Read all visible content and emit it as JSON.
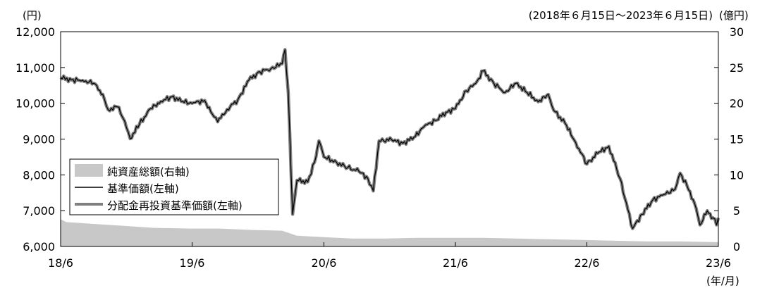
{
  "period_label": "(2018年６月15日～2023年６月15日)",
  "left_unit": "(円)",
  "right_unit": "(億円)",
  "x_unit": "(年/月)",
  "legend": [
    {
      "label": "純資産総額(右軸)",
      "kind": "area",
      "color": "#c8c8c8"
    },
    {
      "label": "基準価額(左軸)",
      "kind": "line",
      "color": "#000000"
    },
    {
      "label": "分配金再投資基準価額(左軸)",
      "kind": "thick-line",
      "color": "#808080"
    }
  ],
  "chart_data": {
    "type": "line",
    "x_axis": {
      "type": "date",
      "range": [
        "2018-06-15",
        "2023-06-15"
      ],
      "ticks": [
        {
          "date": "2018-06-15",
          "label": "18/6"
        },
        {
          "date": "2019-06-15",
          "label": "19/6"
        },
        {
          "date": "2020-06-15",
          "label": "20/6"
        },
        {
          "date": "2021-06-15",
          "label": "21/6"
        },
        {
          "date": "2022-06-15",
          "label": "22/6"
        },
        {
          "date": "2023-06-15",
          "label": "23/6"
        }
      ]
    },
    "y_left": {
      "range": [
        6000,
        12000
      ],
      "ticks": [
        {
          "value": 6000,
          "label": "6,000"
        },
        {
          "value": 7000,
          "label": "7,000"
        },
        {
          "value": 8000,
          "label": "8,000"
        },
        {
          "value": 9000,
          "label": "9,000"
        },
        {
          "value": 10000,
          "label": "10,000"
        },
        {
          "value": 11000,
          "label": "11,000"
        },
        {
          "value": 12000,
          "label": "12,000"
        }
      ]
    },
    "y_right": {
      "range": [
        0,
        30
      ],
      "ticks": [
        {
          "value": 0,
          "label": "0"
        },
        {
          "value": 5,
          "label": "5"
        },
        {
          "value": 10,
          "label": "10"
        },
        {
          "value": 15,
          "label": "15"
        },
        {
          "value": 20,
          "label": "20"
        },
        {
          "value": 25,
          "label": "25"
        },
        {
          "value": 30,
          "label": "30"
        }
      ]
    },
    "series": [
      {
        "name": "純資産総額(右軸)",
        "axis": "right",
        "type": "area",
        "color": "#c8c8c8",
        "points": [
          [
            "2018-06-15",
            3.8
          ],
          [
            "2018-07-01",
            3.4
          ],
          [
            "2018-09-01",
            3.2
          ],
          [
            "2018-12-01",
            2.9
          ],
          [
            "2019-03-01",
            2.6
          ],
          [
            "2019-06-15",
            2.5
          ],
          [
            "2019-09-01",
            2.5
          ],
          [
            "2019-12-01",
            2.3
          ],
          [
            "2020-02-20",
            2.2
          ],
          [
            "2020-04-01",
            1.5
          ],
          [
            "2020-06-15",
            1.3
          ],
          [
            "2020-09-01",
            1.1
          ],
          [
            "2020-12-01",
            1.1
          ],
          [
            "2021-03-01",
            1.2
          ],
          [
            "2021-06-15",
            1.2
          ],
          [
            "2021-09-01",
            1.2
          ],
          [
            "2021-12-01",
            1.1
          ],
          [
            "2022-03-01",
            1.0
          ],
          [
            "2022-06-15",
            0.9
          ],
          [
            "2022-09-01",
            0.8
          ],
          [
            "2022-12-01",
            0.7
          ],
          [
            "2023-03-01",
            0.7
          ],
          [
            "2023-06-15",
            0.6
          ]
        ]
      },
      {
        "name": "基準価額(左軸)",
        "axis": "left",
        "type": "line",
        "color": "#000000",
        "points": [
          [
            "2018-06-15",
            10720
          ],
          [
            "2018-07-15",
            10650
          ],
          [
            "2018-08-15",
            10640
          ],
          [
            "2018-09-15",
            10560
          ],
          [
            "2018-10-10",
            10250
          ],
          [
            "2018-10-25",
            9820
          ],
          [
            "2018-11-20",
            9900
          ],
          [
            "2018-12-10",
            9500
          ],
          [
            "2018-12-25",
            9010
          ],
          [
            "2019-01-20",
            9420
          ],
          [
            "2019-02-20",
            9850
          ],
          [
            "2019-03-20",
            10050
          ],
          [
            "2019-04-20",
            10180
          ],
          [
            "2019-05-20",
            10050
          ],
          [
            "2019-06-15",
            10000
          ],
          [
            "2019-07-20",
            10080
          ],
          [
            "2019-08-10",
            9700
          ],
          [
            "2019-08-25",
            9480
          ],
          [
            "2019-09-20",
            9830
          ],
          [
            "2019-10-20",
            10100
          ],
          [
            "2019-11-20",
            10650
          ],
          [
            "2019-12-20",
            10880
          ],
          [
            "2020-01-20",
            10970
          ],
          [
            "2020-02-20",
            11100
          ],
          [
            "2020-02-28",
            11500
          ],
          [
            "2020-03-08",
            10300
          ],
          [
            "2020-03-20",
            6900
          ],
          [
            "2020-04-01",
            7850
          ],
          [
            "2020-05-01",
            7800
          ],
          [
            "2020-05-20",
            8350
          ],
          [
            "2020-06-01",
            8950
          ],
          [
            "2020-06-15",
            8500
          ],
          [
            "2020-07-20",
            8350
          ],
          [
            "2020-08-20",
            8200
          ],
          [
            "2020-09-20",
            8100
          ],
          [
            "2020-10-15",
            7900
          ],
          [
            "2020-10-30",
            7550
          ],
          [
            "2020-11-15",
            8950
          ],
          [
            "2020-12-20",
            8980
          ],
          [
            "2021-01-20",
            8880
          ],
          [
            "2021-02-20",
            9050
          ],
          [
            "2021-03-20",
            9350
          ],
          [
            "2021-04-20",
            9520
          ],
          [
            "2021-05-20",
            9750
          ],
          [
            "2021-06-15",
            9850
          ],
          [
            "2021-07-15",
            10350
          ],
          [
            "2021-08-10",
            10550
          ],
          [
            "2021-08-31",
            10900
          ],
          [
            "2021-09-30",
            10550
          ],
          [
            "2021-10-31",
            10300
          ],
          [
            "2021-11-30",
            10560
          ],
          [
            "2021-12-31",
            10300
          ],
          [
            "2022-01-31",
            10040
          ],
          [
            "2022-02-28",
            10250
          ],
          [
            "2022-03-15",
            9800
          ],
          [
            "2022-04-15",
            9450
          ],
          [
            "2022-05-15",
            8900
          ],
          [
            "2022-06-15",
            8300
          ],
          [
            "2022-07-15",
            8600
          ],
          [
            "2022-08-15",
            8800
          ],
          [
            "2022-09-15",
            7900
          ],
          [
            "2022-10-20",
            6500
          ],
          [
            "2022-11-15",
            6900
          ],
          [
            "2022-12-15",
            7300
          ],
          [
            "2023-01-15",
            7450
          ],
          [
            "2023-02-15",
            7600
          ],
          [
            "2023-03-01",
            8050
          ],
          [
            "2023-03-20",
            7700
          ],
          [
            "2023-04-10",
            7200
          ],
          [
            "2023-04-25",
            6600
          ],
          [
            "2023-05-15",
            7000
          ],
          [
            "2023-05-31",
            6800
          ],
          [
            "2023-06-10",
            6600
          ],
          [
            "2023-06-15",
            6800
          ]
        ]
      }
    ]
  }
}
